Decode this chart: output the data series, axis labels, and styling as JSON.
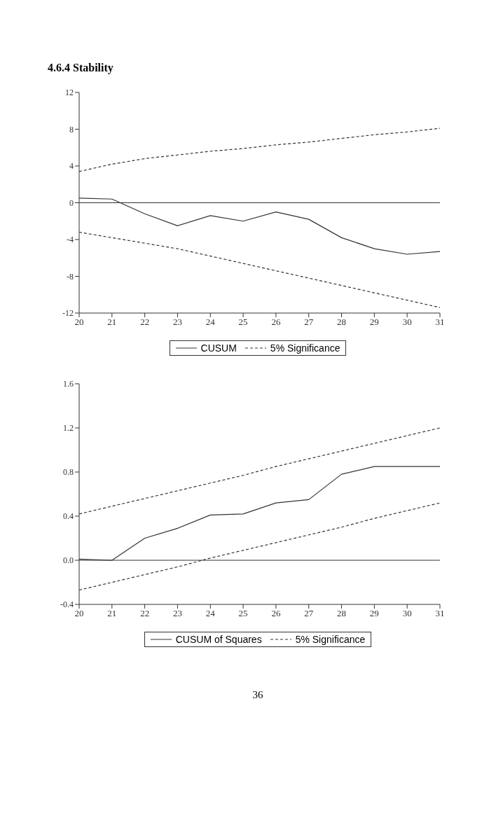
{
  "chart_data": [
    {
      "type": "line",
      "title": "4.6.4 Stability",
      "categories": [
        "20",
        "21",
        "22",
        "23",
        "24",
        "25",
        "26",
        "27",
        "28",
        "29",
        "30",
        "31"
      ],
      "series": [
        {
          "name": "CUSUM",
          "color": "#333333",
          "line_style": "solid",
          "values": [
            0.5,
            0.4,
            -1.2,
            -2.5,
            -1.4,
            -2.0,
            -1.0,
            -1.8,
            -3.8,
            -5.0,
            -5.6,
            -5.3
          ]
        },
        {
          "name": "5% Significance",
          "color": "#333333",
          "line_style": "dashed",
          "values": [
            3.4,
            4.2,
            4.8,
            5.2,
            5.6,
            5.9,
            6.3,
            6.6,
            7.0,
            7.4,
            7.7,
            8.1
          ]
        },
        {
          "color": "#333333",
          "line_style": "dashed",
          "values": [
            -3.2,
            -3.8,
            -4.4,
            -5.0,
            -5.8,
            -6.6,
            -7.4,
            -8.2,
            -9.0,
            -9.8,
            -10.6,
            -11.4
          ]
        }
      ],
      "ylim": [
        -12,
        12
      ],
      "yticks": [
        -12,
        -8,
        -4,
        0,
        4,
        8,
        12
      ],
      "ref_lines": [
        {
          "axis": "y",
          "value": 0,
          "color": "#333333"
        }
      ],
      "grid": false,
      "legend": "bottom",
      "marker": "none"
    },
    {
      "type": "line",
      "categories": [
        "20",
        "21",
        "22",
        "23",
        "24",
        "25",
        "26",
        "27",
        "28",
        "29",
        "30",
        "31"
      ],
      "series": [
        {
          "name": "CUSUM of Squares",
          "color": "#333333",
          "line_style": "solid",
          "values": [
            0.01,
            0.0,
            0.2,
            0.29,
            0.41,
            0.42,
            0.52,
            0.55,
            0.78,
            0.85,
            0.85,
            0.85
          ]
        },
        {
          "name": "5% Significance",
          "color": "#333333",
          "line_style": "dashed",
          "values": [
            0.42,
            0.49,
            0.56,
            0.63,
            0.7,
            0.77,
            0.85,
            0.92,
            0.99,
            1.06,
            1.13,
            1.2
          ]
        },
        {
          "color": "#333333",
          "line_style": "dashed",
          "values": [
            -0.27,
            -0.2,
            -0.13,
            -0.06,
            0.02,
            0.09,
            0.16,
            0.23,
            0.3,
            0.38,
            0.45,
            0.52
          ]
        }
      ],
      "ylim": [
        -0.4,
        1.6
      ],
      "yticks": [
        -0.4,
        {
          "value": 0,
          "label": "0.0"
        },
        0.4,
        0.8,
        1.2,
        1.6
      ],
      "ref_lines": [
        {
          "axis": "y",
          "value": 0,
          "color": "#333333"
        }
      ],
      "grid": false,
      "legend": "bottom",
      "marker": "none",
      "annotations": [
        "36"
      ]
    }
  ]
}
